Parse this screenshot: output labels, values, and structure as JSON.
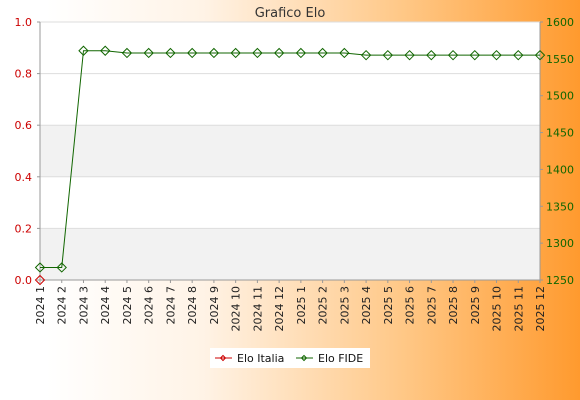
{
  "chart_data": {
    "type": "line",
    "title": "Grafico Elo",
    "categories": [
      "2024 1",
      "2024 2",
      "2024 3",
      "2024 4",
      "2024 5",
      "2024 6",
      "2024 7",
      "2024 8",
      "2024 9",
      "2024 10",
      "2024 11",
      "2024 12",
      "2025 1",
      "2025 2",
      "2025 3",
      "2025 4",
      "2025 5",
      "2025 6",
      "2025 7",
      "2025 8",
      "2025 9",
      "2025 10",
      "2025 11",
      "2025 12"
    ],
    "y_left": {
      "ticks": [
        "0.0",
        "0.2",
        "0.4",
        "0.6",
        "0.8",
        "1.0"
      ],
      "range": [
        0,
        1
      ],
      "color": "#cc0000"
    },
    "y_right": {
      "ticks": [
        "1250",
        "1300",
        "1350",
        "1400",
        "1450",
        "1500",
        "1550",
        "1600"
      ],
      "range": [
        1250,
        1600
      ],
      "color": "#116600"
    },
    "grid": "horizontal alternating bands",
    "legend_position": "bottom-center",
    "series": [
      {
        "name": "Elo Italia",
        "axis": "left",
        "color": "#cc0000",
        "values": [
          0,
          null,
          null,
          null,
          null,
          null,
          null,
          null,
          null,
          null,
          null,
          null,
          null,
          null,
          null,
          null,
          null,
          null,
          null,
          null,
          null,
          null,
          null,
          null
        ]
      },
      {
        "name": "Elo FIDE",
        "axis": "right",
        "color": "#116600",
        "values": [
          1267,
          1267,
          1561,
          1561,
          1558,
          1558,
          1558,
          1558,
          1558,
          1558,
          1558,
          1558,
          1558,
          1558,
          1558,
          1555,
          1555,
          1555,
          1555,
          1555,
          1555,
          1555,
          1555,
          1555
        ]
      }
    ]
  }
}
